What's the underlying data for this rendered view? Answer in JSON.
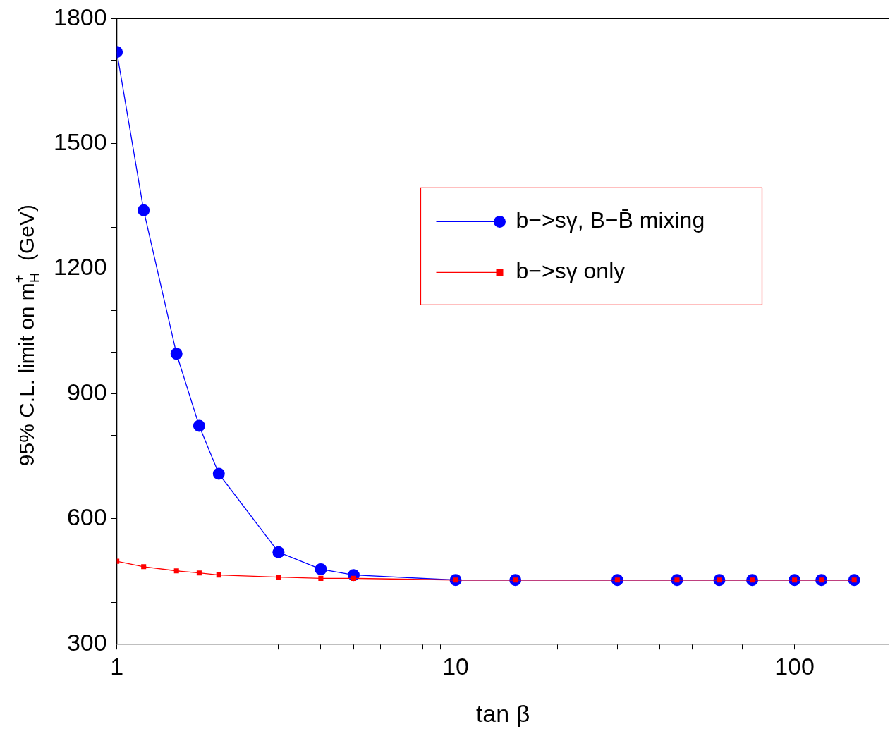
{
  "chart_data": {
    "type": "line",
    "xlabel": "tan β",
    "ylabel": "95% C.L. limit on m$_{H}$$^{+}$  (GeV)",
    "log": "x",
    "xlim": [
      1,
      190
    ],
    "ylim": [
      300,
      1800
    ],
    "xticks": [
      1,
      {
        "value": 2,
        "label": null
      },
      {
        "value": 3,
        "label": null
      },
      {
        "value": 4,
        "label": null
      },
      {
        "value": 5,
        "label": null
      },
      {
        "value": 6,
        "label": null
      },
      {
        "value": 7,
        "label": null
      },
      {
        "value": 8,
        "label": null
      },
      {
        "value": 9,
        "label": null
      },
      10,
      {
        "value": 20,
        "label": null
      },
      {
        "value": 30,
        "label": null
      },
      {
        "value": 40,
        "label": null
      },
      {
        "value": 50,
        "label": null
      },
      {
        "value": 60,
        "label": null
      },
      {
        "value": 70,
        "label": null
      },
      {
        "value": 80,
        "label": null
      },
      {
        "value": 90,
        "label": null
      },
      100
    ],
    "yticks": [
      300,
      {
        "value": 400,
        "label": null
      },
      {
        "value": 500,
        "label": null
      },
      600,
      {
        "value": 700,
        "label": null
      },
      {
        "value": 800,
        "label": null
      },
      900,
      {
        "value": 1000,
        "label": null
      },
      {
        "value": 1100,
        "label": null
      },
      1200,
      {
        "value": 1300,
        "label": null
      },
      {
        "value": 1400,
        "label": null
      },
      1500,
      {
        "value": 1600,
        "label": null
      },
      {
        "value": 1700,
        "label": null
      },
      1800
    ],
    "grid": false,
    "legend": "top right",
    "line_style": "solid",
    "series": [
      {
        "name": "b−>sγ, B−B̄ mixing",
        "color": "#0000ff",
        "marker": "circle",
        "x": [
          1,
          1.2,
          1.5,
          1.75,
          2,
          3,
          4,
          5,
          10,
          15,
          30,
          45,
          60,
          75,
          100,
          120,
          150
        ],
        "values": [
          1720,
          1340,
          996,
          823,
          708,
          520,
          479,
          465,
          453,
          453,
          453,
          453,
          453,
          453,
          453,
          453,
          453
        ]
      },
      {
        "name": "b−>sγ only",
        "color": "#ff0000",
        "marker": "square",
        "x": [
          1,
          1.2,
          1.5,
          1.75,
          2,
          3,
          4,
          5,
          10,
          15,
          30,
          45,
          60,
          75,
          100,
          120,
          150
        ],
        "values": [
          498,
          485,
          475,
          470,
          465,
          460,
          457,
          457,
          453,
          453,
          453,
          453,
          453,
          453,
          453,
          453,
          453
        ]
      }
    ]
  }
}
